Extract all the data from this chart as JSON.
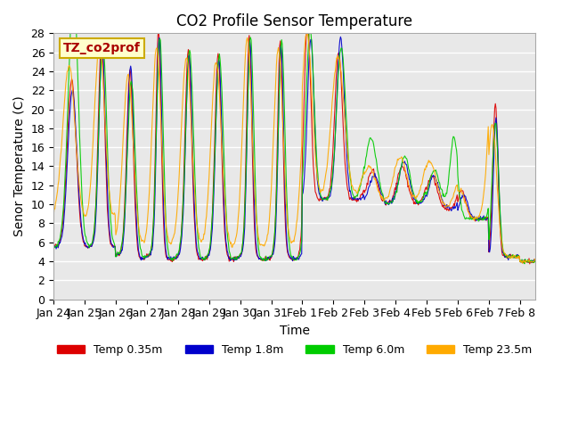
{
  "title": "CO2 Profile Sensor Temperature",
  "xlabel": "Time",
  "ylabel": "Senor Temperature (C)",
  "ylim": [
    0,
    28
  ],
  "yticks": [
    0,
    2,
    4,
    6,
    8,
    10,
    12,
    14,
    16,
    18,
    20,
    22,
    24,
    26,
    28
  ],
  "xtick_labels": [
    "Jan 24",
    "Jan 25",
    "Jan 26",
    "Jan 27",
    "Jan 28",
    "Jan 29",
    "Jan 30",
    "Jan 31",
    "Feb 1",
    "Feb 2",
    "Feb 3",
    "Feb 4",
    "Feb 5",
    "Feb 6",
    "Feb 7",
    "Feb 8"
  ],
  "legend_labels": [
    "Temp 0.35m",
    "Temp 1.8m",
    "Temp 6.0m",
    "Temp 23.5m"
  ],
  "line_colors": [
    "#dd0000",
    "#0000cc",
    "#00cc00",
    "#ffaa00"
  ],
  "annotation_text": "TZ_co2prof",
  "annotation_color": "#aa0000",
  "annotation_bg": "#ffffcc",
  "annotation_border": "#ccaa00",
  "bg_color": "#e8e8e8",
  "title_fontsize": 12,
  "axis_fontsize": 10,
  "tick_fontsize": 9
}
